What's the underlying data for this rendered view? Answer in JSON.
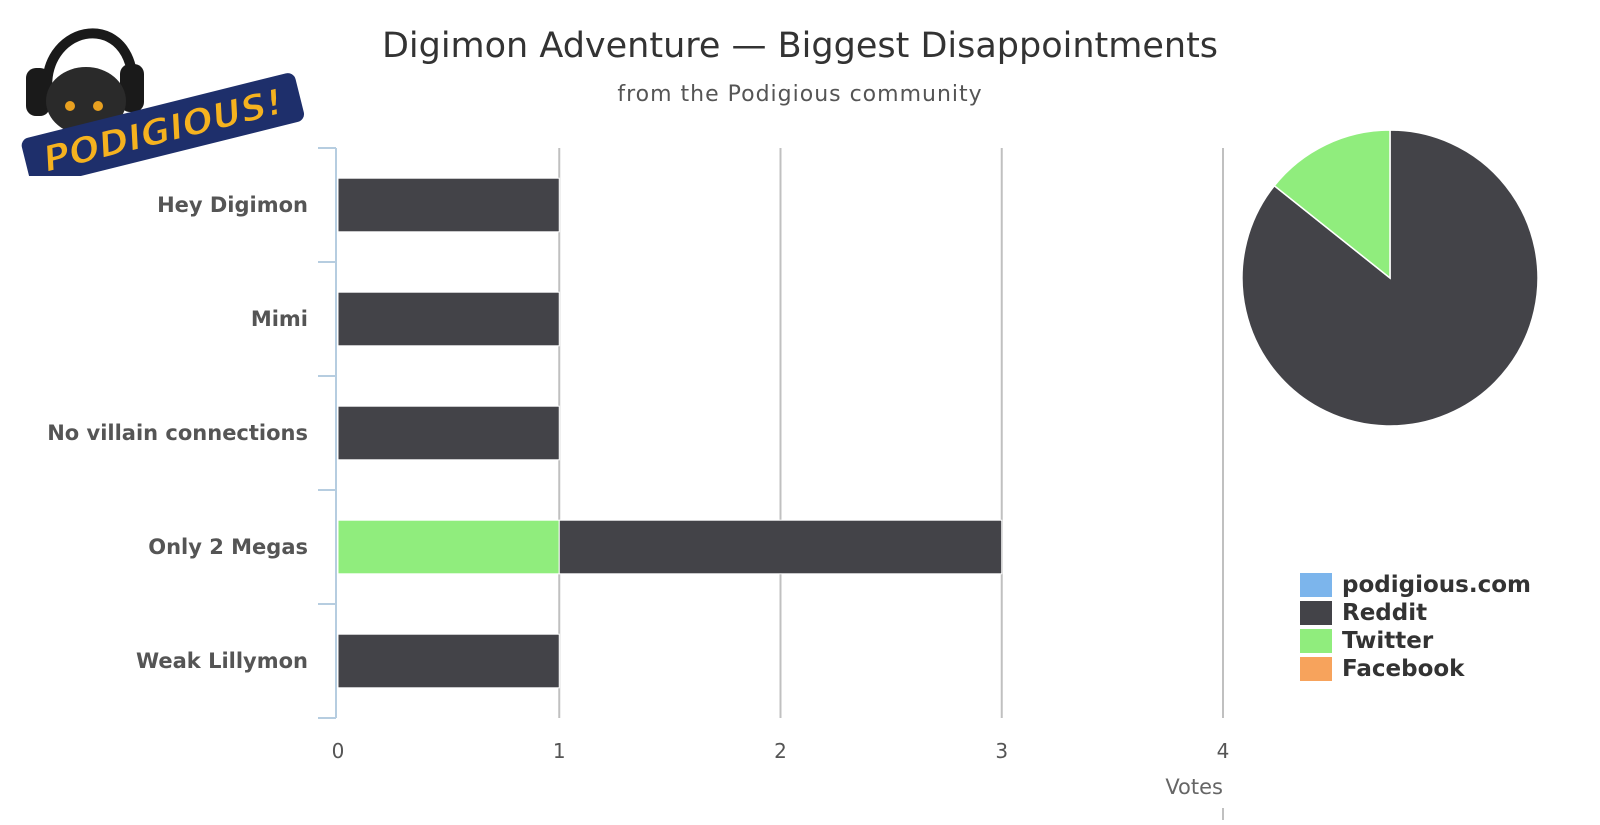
{
  "logo": {
    "text": "PODIGIOUS!"
  },
  "chart_data": [
    {
      "type": "bar",
      "orientation": "horizontal",
      "stacked": true,
      "title": "Digimon Adventure — Biggest Disappointments",
      "subtitle": "from the Podigious community",
      "categories": [
        "Hey Digimon",
        "Mimi",
        "No villain connections",
        "Only 2 Megas",
        "Weak Lillymon"
      ],
      "series": [
        {
          "name": "podigious.com",
          "color": "#7cb5ec",
          "values": [
            0,
            0,
            0,
            0,
            0
          ]
        },
        {
          "name": "Reddit",
          "color": "#434348",
          "values": [
            1,
            1,
            1,
            2,
            1
          ]
        },
        {
          "name": "Twitter",
          "color": "#90ed7d",
          "values": [
            0,
            0,
            0,
            1,
            0
          ]
        },
        {
          "name": "Facebook",
          "color": "#f7a35c",
          "values": [
            0,
            0,
            0,
            0,
            0
          ]
        }
      ],
      "xlabel": "Votes",
      "xlim": [
        0,
        4
      ],
      "xticks": [
        "0",
        "1",
        "2",
        "3",
        "4"
      ],
      "grid": true
    },
    {
      "type": "pie",
      "slices": [
        {
          "name": "Reddit",
          "value": 6,
          "color": "#434348"
        },
        {
          "name": "Twitter",
          "value": 1,
          "color": "#90ed7d"
        }
      ]
    }
  ],
  "legend": [
    {
      "label": "podigious.com",
      "color": "#7cb5ec"
    },
    {
      "label": "Reddit",
      "color": "#434348"
    },
    {
      "label": "Twitter",
      "color": "#90ed7d"
    },
    {
      "label": "Facebook",
      "color": "#f7a35c"
    }
  ]
}
